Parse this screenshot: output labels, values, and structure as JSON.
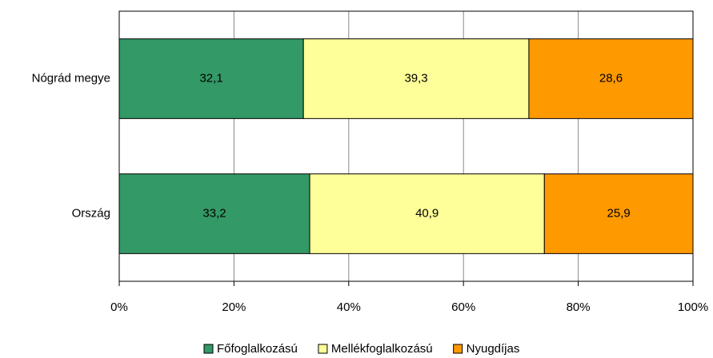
{
  "chart_data": {
    "type": "stacked_barh",
    "categories": [
      "Nógrád megye",
      "Ország"
    ],
    "series": [
      {
        "name": "Főfoglalkozású",
        "color": "#339966",
        "values": [
          32.1,
          33.2
        ],
        "value_labels": [
          "32,1",
          "33,2"
        ]
      },
      {
        "name": "Mellékfoglalkozású",
        "color": "#ffff99",
        "values": [
          39.3,
          40.9
        ],
        "value_labels": [
          "39,3",
          "40,9"
        ]
      },
      {
        "name": "Nyugdíjas",
        "color": "#ff9900",
        "values": [
          28.6,
          25.9
        ],
        "value_labels": [
          "28,6",
          "25,9"
        ]
      }
    ],
    "xlim": [
      0,
      100
    ],
    "xticks": [
      {
        "value": 0,
        "label": "0%"
      },
      {
        "value": 20,
        "label": "20%"
      },
      {
        "value": 40,
        "label": "40%"
      },
      {
        "value": 60,
        "label": "60%"
      },
      {
        "value": 80,
        "label": "80%"
      },
      {
        "value": 100,
        "label": "100%"
      }
    ],
    "grid": true,
    "legend": "bottom"
  }
}
